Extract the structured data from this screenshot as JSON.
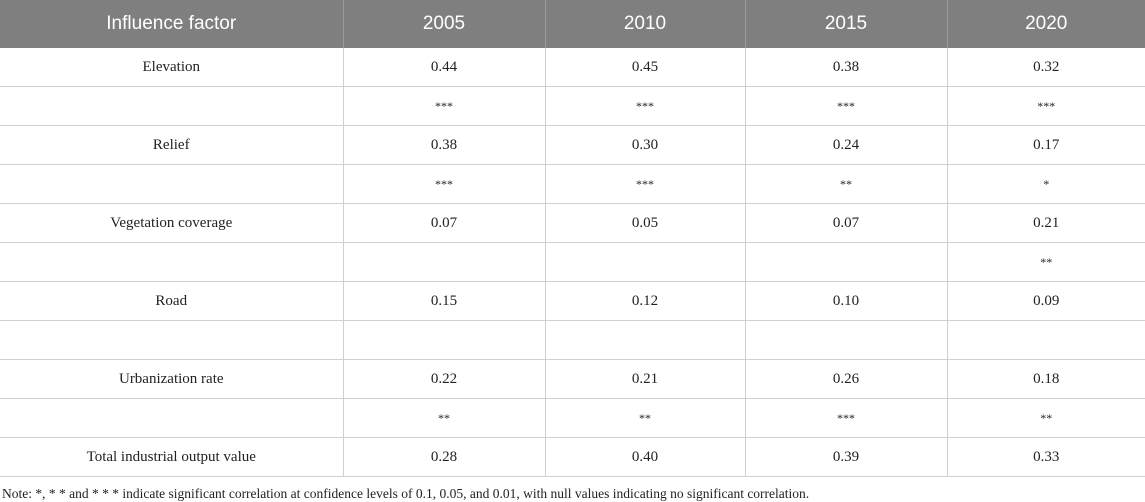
{
  "table": {
    "headers": [
      "Influence factor",
      "2005",
      "2010",
      "2015",
      "2020"
    ],
    "rows": [
      {
        "type": "value",
        "cells": [
          "Elevation",
          "0.44",
          "0.45",
          "0.38",
          "0.32"
        ]
      },
      {
        "type": "sig",
        "cells": [
          "",
          "***",
          "***",
          "***",
          "***"
        ]
      },
      {
        "type": "value",
        "cells": [
          "Relief",
          "0.38",
          "0.30",
          "0.24",
          "0.17"
        ]
      },
      {
        "type": "sig",
        "cells": [
          "",
          "***",
          "***",
          "**",
          "*"
        ]
      },
      {
        "type": "value",
        "cells": [
          "Vegetation coverage",
          "0.07",
          "0.05",
          "0.07",
          "0.21"
        ]
      },
      {
        "type": "sig",
        "cells": [
          "",
          "",
          "",
          "",
          "**"
        ]
      },
      {
        "type": "value",
        "cells": [
          "Road",
          "0.15",
          "0.12",
          "0.10",
          "0.09"
        ]
      },
      {
        "type": "sig",
        "cells": [
          "",
          "",
          "",
          "",
          ""
        ]
      },
      {
        "type": "value",
        "cells": [
          "Urbanization rate",
          "0.22",
          "0.21",
          "0.26",
          "0.18"
        ]
      },
      {
        "type": "sig",
        "cells": [
          "",
          "**",
          "**",
          "***",
          "**"
        ]
      },
      {
        "type": "value",
        "cells": [
          "Total industrial output value",
          "0.28",
          "0.40",
          "0.39",
          "0.33"
        ]
      }
    ]
  },
  "note": "Note: *, * * and * * * indicate significant correlation at confidence levels of 0.1, 0.05, and 0.01, with null values indicating no significant correlation."
}
